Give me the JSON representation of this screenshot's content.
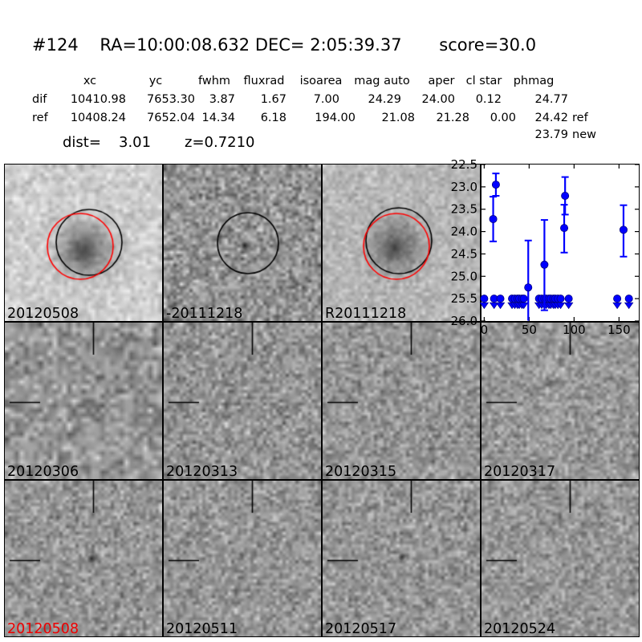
{
  "header": {
    "title": "#124    RA=10:00:08.632 DEC= 2:05:39.37       score=30.0"
  },
  "table": {
    "columns": [
      "xc",
      "yc",
      "fwhm",
      "fluxrad",
      "isoarea",
      "mag auto",
      "aper",
      "cl star",
      "phmag"
    ],
    "rows": [
      {
        "label": "dif",
        "values": [
          "10410.98",
          "7653.30",
          "3.87",
          "1.67",
          "7.00",
          "24.29",
          "24.00",
          "0.12",
          "24.77"
        ],
        "suffix": ""
      },
      {
        "label": "ref",
        "values": [
          "10408.24",
          "7652.04",
          "14.34",
          "6.18",
          "194.00",
          "21.08",
          "21.28",
          "0.00",
          "24.42"
        ],
        "suffix": "ref"
      }
    ],
    "extra_phmag": {
      "value": "23.79",
      "suffix": "new"
    },
    "dist_label": "dist=",
    "dist_value": "3.01",
    "z_value": "z=0.7210"
  },
  "colors": {
    "marker_blue": "#0000ff",
    "marker_edge": "#00007f",
    "circle_black": "#000000",
    "circle_red": "#ff0000",
    "red_label": "#ee0000"
  },
  "panels": [
    {
      "name": "cutout-new-20120508",
      "label": "20120508",
      "label_color": "#000000"
    },
    {
      "name": "cutout-diff-20111218",
      "label": "-20111218",
      "label_color": "#000000"
    },
    {
      "name": "cutout-ref-R20111218",
      "label": "R20111218",
      "label_color": "#000000"
    },
    {
      "name": "cutout-epoch-20120306",
      "label": "20120306",
      "label_color": "#000000"
    },
    {
      "name": "cutout-epoch-20120313",
      "label": "20120313",
      "label_color": "#000000"
    },
    {
      "name": "cutout-epoch-20120315",
      "label": "20120315",
      "label_color": "#000000"
    },
    {
      "name": "cutout-epoch-20120317",
      "label": "20120317",
      "label_color": "#000000"
    },
    {
      "name": "cutout-epoch-20120508",
      "label": "20120508",
      "label_color": "#ee0000"
    },
    {
      "name": "cutout-epoch-20120511",
      "label": "20120511",
      "label_color": "#000000"
    },
    {
      "name": "cutout-epoch-20120517",
      "label": "20120517",
      "label_color": "#000000"
    },
    {
      "name": "cutout-epoch-20120524",
      "label": "20120524",
      "label_color": "#000000"
    }
  ],
  "chart_data": {
    "type": "scatter",
    "title": "",
    "xlabel": "",
    "ylabel": "",
    "xlim": [
      -3,
      172
    ],
    "ylim": [
      26.0,
      22.5
    ],
    "y_axis_inverted": true,
    "grid": false,
    "xticks": [
      0,
      50,
      100,
      150
    ],
    "yticks": [
      22.5,
      23.0,
      23.5,
      24.0,
      24.5,
      25.0,
      25.5,
      26.0
    ],
    "series": [
      {
        "name": "detections",
        "marker": "circle",
        "color": "#0000ff",
        "points": [
          {
            "x": 10,
            "y": 23.72,
            "err_up": 0.5,
            "err_down": 0.5
          },
          {
            "x": 13,
            "y": 22.95,
            "err_up": 0.25,
            "err_down": 0.25
          },
          {
            "x": 49,
            "y": 25.25,
            "err_up": 1.05,
            "err_down": 1.2
          },
          {
            "x": 67,
            "y": 24.74,
            "err_up": 1.0,
            "err_down": 1.02
          },
          {
            "x": 89,
            "y": 23.92,
            "err_up": 0.52,
            "err_down": 0.55
          },
          {
            "x": 90,
            "y": 23.2,
            "err_up": 0.42,
            "err_down": 0.42
          },
          {
            "x": 155,
            "y": 23.96,
            "err_up": 0.55,
            "err_down": 0.6
          }
        ]
      },
      {
        "name": "upper-limits",
        "marker": "circle-with-down-caret",
        "color": "#0000ff",
        "limit_mag": 25.5,
        "x": [
          0,
          11,
          18,
          31,
          34,
          37,
          39,
          42,
          44,
          61,
          64,
          67,
          69,
          72,
          74,
          77,
          79,
          82,
          85,
          94,
          148,
          161
        ]
      }
    ]
  }
}
